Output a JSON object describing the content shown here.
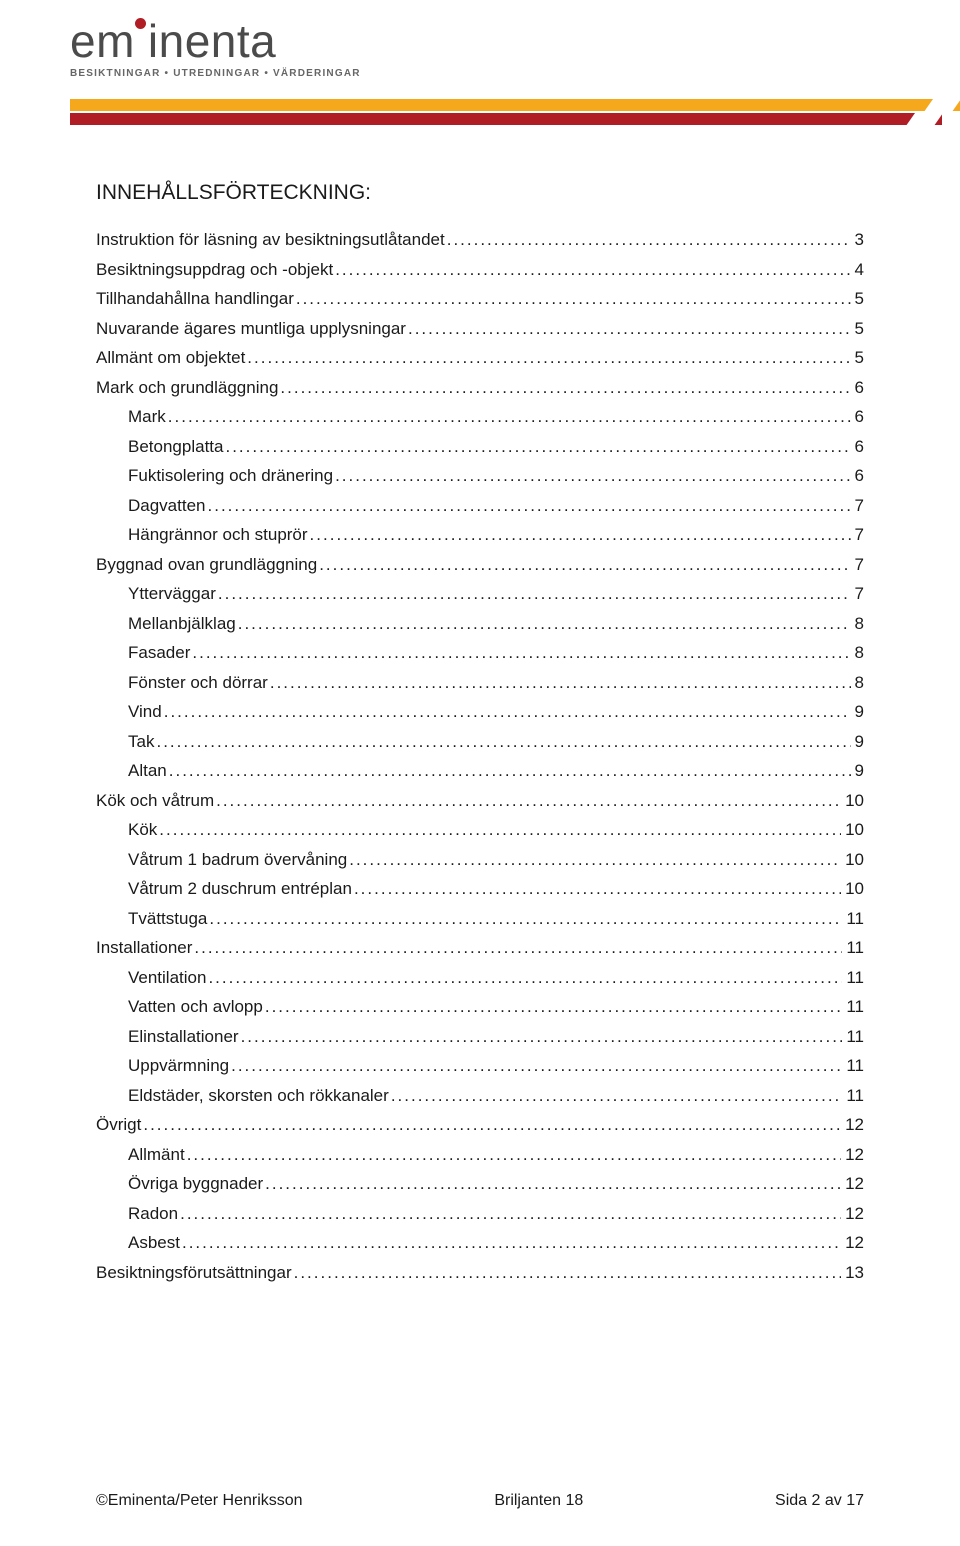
{
  "brand": {
    "name": "eminenta",
    "dot_color": "#b11d24",
    "tagline_parts": [
      "BESIKTNINGAR",
      "UTREDNINGAR",
      "VÄRDERINGAR"
    ],
    "stripe_top_color": "#f5a81c",
    "stripe_bottom_color": "#b11d24"
  },
  "title": "INNEHÅLLSFÖRTECKNING:",
  "toc": [
    {
      "level": 1,
      "label": "Instruktion för läsning av besiktningsutlåtandet",
      "page": "3"
    },
    {
      "level": 1,
      "label": "Besiktningsuppdrag och -objekt",
      "page": "4"
    },
    {
      "level": 1,
      "label": "Tillhandahållna handlingar",
      "page": "5"
    },
    {
      "level": 1,
      "label": "Nuvarande ägares muntliga upplysningar",
      "page": "5"
    },
    {
      "level": 1,
      "label": "Allmänt om objektet",
      "page": "5"
    },
    {
      "level": 1,
      "label": "Mark och grundläggning",
      "page": "6"
    },
    {
      "level": 2,
      "label": "Mark",
      "page": "6"
    },
    {
      "level": 2,
      "label": "Betongplatta",
      "page": "6"
    },
    {
      "level": 2,
      "label": "Fuktisolering och dränering",
      "page": "6"
    },
    {
      "level": 2,
      "label": "Dagvatten",
      "page": "7"
    },
    {
      "level": 2,
      "label": "Hängrännor och stuprör",
      "page": "7"
    },
    {
      "level": 1,
      "label": "Byggnad ovan grundläggning",
      "page": "7"
    },
    {
      "level": 2,
      "label": "Ytterväggar",
      "page": "7"
    },
    {
      "level": 2,
      "label": "Mellanbjälklag",
      "page": "8"
    },
    {
      "level": 2,
      "label": "Fasader",
      "page": "8"
    },
    {
      "level": 2,
      "label": "Fönster och dörrar",
      "page": "8"
    },
    {
      "level": 2,
      "label": "Vind",
      "page": "9"
    },
    {
      "level": 2,
      "label": "Tak",
      "page": "9"
    },
    {
      "level": 2,
      "label": "Altan",
      "page": "9"
    },
    {
      "level": 1,
      "label": "Kök och våtrum",
      "page": "10"
    },
    {
      "level": 2,
      "label": "Kök",
      "page": "10"
    },
    {
      "level": 2,
      "label": "Våtrum 1 badrum övervåning",
      "page": "10"
    },
    {
      "level": 2,
      "label": "Våtrum 2 duschrum entréplan",
      "page": "10"
    },
    {
      "level": 2,
      "label": "Tvättstuga",
      "page": "11"
    },
    {
      "level": 1,
      "label": "Installationer",
      "page": "11"
    },
    {
      "level": 2,
      "label": "Ventilation",
      "page": "11"
    },
    {
      "level": 2,
      "label": "Vatten och avlopp",
      "page": "11"
    },
    {
      "level": 2,
      "label": "Elinstallationer",
      "page": "11"
    },
    {
      "level": 2,
      "label": "Uppvärmning",
      "page": "11"
    },
    {
      "level": 2,
      "label": "Eldstäder, skorsten och rökkanaler",
      "page": "11"
    },
    {
      "level": 1,
      "label": "Övrigt",
      "page": "12"
    },
    {
      "level": 2,
      "label": "Allmänt",
      "page": "12"
    },
    {
      "level": 2,
      "label": "Övriga byggnader",
      "page": "12"
    },
    {
      "level": 2,
      "label": "Radon",
      "page": "12"
    },
    {
      "level": 2,
      "label": "Asbest",
      "page": "12"
    },
    {
      "level": 1,
      "label": "Besiktningsförutsättningar",
      "page": "13"
    }
  ],
  "footer": {
    "left": "©Eminenta/Peter Henriksson",
    "center": "Briljanten 18",
    "right": "Sida 2 av 17"
  }
}
